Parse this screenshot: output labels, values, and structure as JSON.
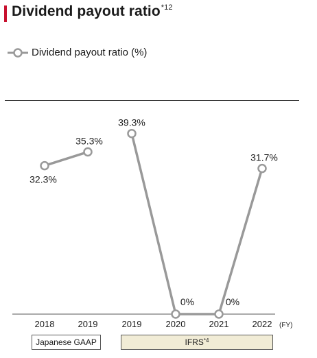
{
  "title": {
    "text": "Dividend payout ratio",
    "sup": "*12"
  },
  "colors": {
    "accent": "#c8102e",
    "line": "#999999",
    "ifrs_fill": "#f1ecd6",
    "text": "#1a1a1a"
  },
  "legend": {
    "label": "Dividend payout ratio (%)"
  },
  "chart_data": {
    "type": "line",
    "title": "Dividend payout ratio",
    "xlabel": "(FY)",
    "ylabel": "",
    "legend": "top-left",
    "ylim": [
      0,
      40
    ],
    "categories": [
      "2018",
      "2019",
      "2019",
      "2020",
      "2021",
      "2022"
    ],
    "series": [
      {
        "name": "Dividend payout ratio (%)",
        "segment": "Japanese GAAP",
        "points": [
          {
            "x": "2018",
            "y": 32.3,
            "label": "32.3%"
          },
          {
            "x": "2019",
            "y": 35.3,
            "label": "35.3%"
          }
        ]
      },
      {
        "name": "Dividend payout ratio (%)",
        "segment": "IFRS",
        "points": [
          {
            "x": "2019",
            "y": 39.3,
            "label": "39.3%"
          },
          {
            "x": "2020",
            "y": 0,
            "label": "0%"
          },
          {
            "x": "2021",
            "y": 0,
            "label": "0%"
          },
          {
            "x": "2022",
            "y": 31.7,
            "label": "31.7%"
          }
        ]
      }
    ],
    "segments": [
      {
        "label": "Japanese GAAP",
        "sup": ""
      },
      {
        "label": "IFRS",
        "sup": "*4"
      }
    ]
  }
}
